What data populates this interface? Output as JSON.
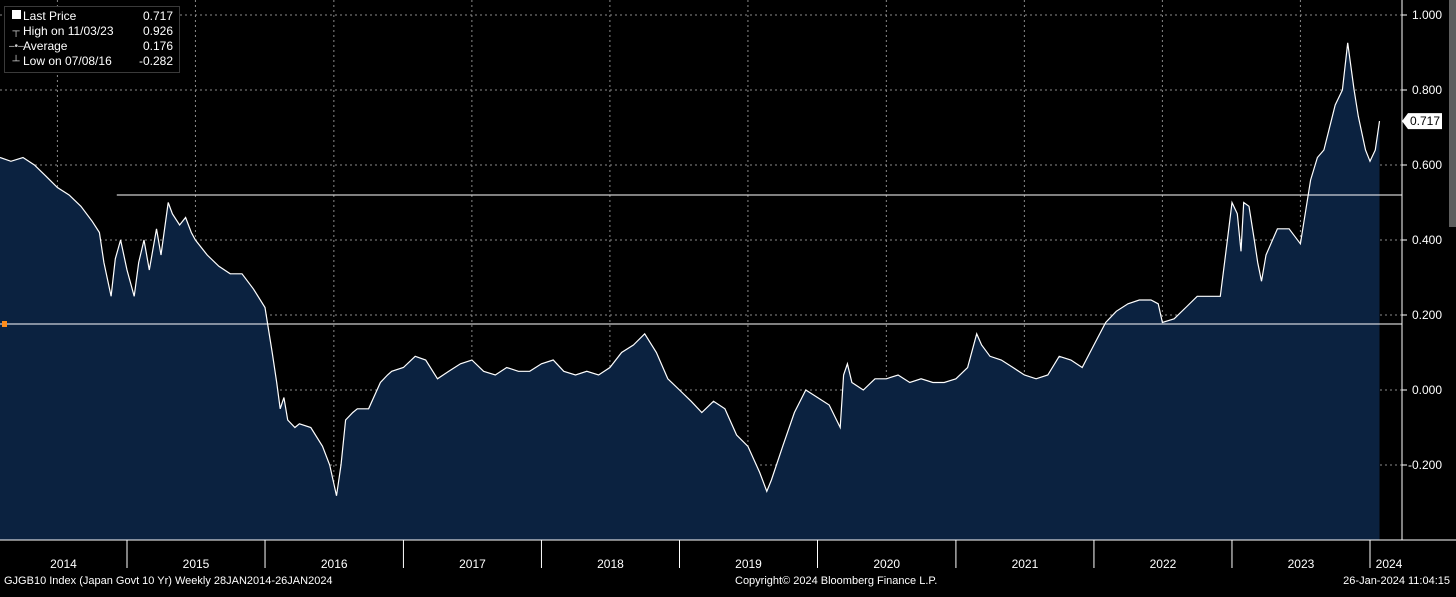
{
  "legend": {
    "last_price": {
      "label": "Last Price",
      "value": "0.717"
    },
    "high": {
      "label": "High on 11/03/23",
      "value": "0.926"
    },
    "average": {
      "label": "Average",
      "value": "0.176"
    },
    "low": {
      "label": "Low on 07/08/16",
      "value": "-0.282"
    }
  },
  "footer": {
    "left": "GJGB10 Index (Japan Govt 10 Yr)  Weekly 28JAN2014-26JAN2024",
    "center": "Copyright© 2024 Bloomberg Finance L.P.",
    "right": "26-Jan-2024 11:04:15"
  },
  "colors": {
    "area_fill": "#0b2240",
    "line": "#ffffff",
    "grid": "#8a8a8a",
    "average_line": "#ffffff",
    "marker": "#ff8c1a",
    "background": "#000000"
  },
  "chart_data": {
    "type": "area",
    "title": "",
    "xlabel": "",
    "ylabel": "",
    "x_range": [
      "2014-01-28",
      "2024-01-26"
    ],
    "ylim": [
      -0.4,
      1.0
    ],
    "grid": true,
    "legend_position": "top-left",
    "y_ticks": [
      "1.000",
      "0.800",
      "0.600",
      "0.400",
      "0.200",
      "0.000",
      "-0.200"
    ],
    "x_ticks": [
      "2014",
      "2015",
      "2016",
      "2017",
      "2018",
      "2019",
      "2020",
      "2021",
      "2022",
      "2023",
      "2024"
    ],
    "last_price_tag": "0.717",
    "average": 0.176,
    "reference_line": {
      "value": 0.52,
      "start": "2014-12-05"
    },
    "series": [
      {
        "x": [
          "2014-01-28",
          "2014-02-28",
          "2014-04-01",
          "2014-05-01",
          "2014-06-01",
          "2014-07-01",
          "2014-08-01",
          "2014-09-01",
          "2014-10-01",
          "2014-10-20",
          "2014-11-01",
          "2014-11-20",
          "2014-12-01",
          "2014-12-15",
          "2015-01-01",
          "2015-01-20",
          "2015-02-01",
          "2015-02-15",
          "2015-03-01",
          "2015-03-20",
          "2015-04-01",
          "2015-04-20",
          "2015-05-01",
          "2015-05-20",
          "2015-06-05",
          "2015-06-20",
          "2015-07-01",
          "2015-08-01",
          "2015-09-01",
          "2015-10-01",
          "2015-11-01",
          "2015-12-01",
          "2016-01-01",
          "2016-01-20",
          "2016-02-01",
          "2016-02-10",
          "2016-02-20",
          "2016-03-01",
          "2016-03-20",
          "2016-04-01",
          "2016-05-01",
          "2016-06-01",
          "2016-06-20",
          "2016-07-08",
          "2016-07-20",
          "2016-08-01",
          "2016-08-20",
          "2016-09-01",
          "2016-10-01",
          "2016-11-01",
          "2016-11-20",
          "2016-12-01",
          "2017-01-01",
          "2017-02-01",
          "2017-03-01",
          "2017-04-01",
          "2017-05-01",
          "2017-06-01",
          "2017-07-01",
          "2017-08-01",
          "2017-09-01",
          "2017-10-01",
          "2017-11-01",
          "2017-12-01",
          "2018-01-01",
          "2018-02-01",
          "2018-03-01",
          "2018-04-01",
          "2018-05-01",
          "2018-06-01",
          "2018-07-01",
          "2018-08-01",
          "2018-09-01",
          "2018-10-01",
          "2018-11-01",
          "2018-12-01",
          "2019-01-01",
          "2019-02-01",
          "2019-03-01",
          "2019-04-01",
          "2019-05-01",
          "2019-06-01",
          "2019-07-01",
          "2019-08-01",
          "2019-08-20",
          "2019-09-01",
          "2019-10-01",
          "2019-11-01",
          "2019-12-01",
          "2020-01-01",
          "2020-02-01",
          "2020-03-01",
          "2020-03-10",
          "2020-03-20",
          "2020-04-01",
          "2020-05-01",
          "2020-06-01",
          "2020-07-01",
          "2020-08-01",
          "2020-09-01",
          "2020-10-01",
          "2020-11-01",
          "2020-12-01",
          "2021-01-01",
          "2021-02-01",
          "2021-02-25",
          "2021-03-10",
          "2021-04-01",
          "2021-05-01",
          "2021-06-01",
          "2021-07-01",
          "2021-08-01",
          "2021-09-01",
          "2021-10-01",
          "2021-11-01",
          "2021-12-01",
          "2022-01-01",
          "2022-02-01",
          "2022-03-01",
          "2022-04-01",
          "2022-05-01",
          "2022-06-01",
          "2022-06-20",
          "2022-07-01",
          "2022-08-01",
          "2022-09-01",
          "2022-10-01",
          "2022-11-01",
          "2022-12-01",
          "2022-12-20",
          "2023-01-01",
          "2023-01-15",
          "2023-01-25",
          "2023-02-01",
          "2023-02-15",
          "2023-03-01",
          "2023-03-10",
          "2023-03-20",
          "2023-04-01",
          "2023-05-01",
          "2023-06-01",
          "2023-07-01",
          "2023-07-28",
          "2023-08-15",
          "2023-09-01",
          "2023-10-01",
          "2023-10-20",
          "2023-11-03",
          "2023-11-20",
          "2023-12-01",
          "2023-12-20",
          "2024-01-01",
          "2024-01-15",
          "2024-01-26"
        ],
        "values": [
          0.62,
          0.61,
          0.62,
          0.6,
          0.57,
          0.54,
          0.52,
          0.49,
          0.45,
          0.42,
          0.34,
          0.25,
          0.35,
          0.4,
          0.32,
          0.25,
          0.34,
          0.4,
          0.32,
          0.43,
          0.36,
          0.5,
          0.47,
          0.44,
          0.46,
          0.42,
          0.4,
          0.36,
          0.33,
          0.31,
          0.31,
          0.27,
          0.22,
          0.1,
          0.02,
          -0.05,
          -0.02,
          -0.08,
          -0.1,
          -0.09,
          -0.1,
          -0.15,
          -0.2,
          -0.282,
          -0.2,
          -0.08,
          -0.06,
          -0.05,
          -0.05,
          0.02,
          0.04,
          0.05,
          0.06,
          0.09,
          0.08,
          0.03,
          0.05,
          0.07,
          0.08,
          0.05,
          0.04,
          0.06,
          0.05,
          0.05,
          0.07,
          0.08,
          0.05,
          0.04,
          0.05,
          0.04,
          0.06,
          0.1,
          0.12,
          0.15,
          0.1,
          0.03,
          0.0,
          -0.03,
          -0.06,
          -0.03,
          -0.05,
          -0.12,
          -0.15,
          -0.22,
          -0.27,
          -0.24,
          -0.15,
          -0.06,
          0.0,
          -0.02,
          -0.04,
          -0.1,
          0.04,
          0.07,
          0.02,
          0.0,
          0.03,
          0.03,
          0.04,
          0.02,
          0.03,
          0.02,
          0.02,
          0.03,
          0.06,
          0.15,
          0.12,
          0.09,
          0.08,
          0.06,
          0.04,
          0.03,
          0.04,
          0.09,
          0.08,
          0.06,
          0.12,
          0.18,
          0.21,
          0.23,
          0.24,
          0.24,
          0.23,
          0.18,
          0.19,
          0.22,
          0.25,
          0.25,
          0.25,
          0.4,
          0.5,
          0.47,
          0.37,
          0.5,
          0.49,
          0.4,
          0.34,
          0.29,
          0.36,
          0.43,
          0.43,
          0.39,
          0.56,
          0.62,
          0.64,
          0.76,
          0.8,
          0.926,
          0.8,
          0.73,
          0.64,
          0.61,
          0.64,
          0.717
        ]
      }
    ]
  }
}
